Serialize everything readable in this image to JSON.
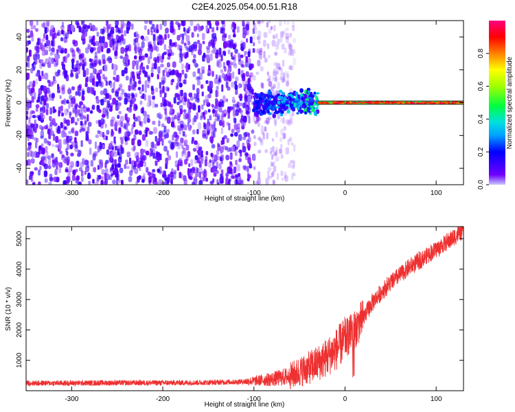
{
  "title": "C2E4.2025.054.00.51.R18",
  "colors": {
    "snr_line": "#ee3030",
    "spectrogram_base": "#7a1ee8",
    "colorbar": [
      "#b0b0ff",
      "#7000ff",
      "#0000ff",
      "#00a0ff",
      "#00e0e0",
      "#00ff40",
      "#a0ff00",
      "#ffff00",
      "#ff8000",
      "#ff0000",
      "#ff0080"
    ]
  },
  "chart_data": [
    {
      "type": "heatmap",
      "title": "C2E4.2025.054.00.51.R18",
      "xlabel": "Height of straight line (km)",
      "ylabel": "Frequency (Hz)",
      "xlim": [
        -350,
        130
      ],
      "ylim": [
        -50,
        50
      ],
      "xticks": [
        -300,
        -200,
        -100,
        0,
        100
      ],
      "yticks": [
        -40,
        -20,
        0,
        20,
        40
      ],
      "colorbar": {
        "label": "Normalized spectral amplitude",
        "range": [
          0,
          1
        ],
        "ticks": [
          "0.0",
          "0.2",
          "0.4",
          "0.6",
          "0.8"
        ]
      },
      "regions": [
        {
          "name": "noise",
          "x_range": [
            -350,
            -100
          ],
          "freq_range": [
            -50,
            50
          ],
          "amplitude": 0.1
        },
        {
          "name": "fading noise",
          "x_range": [
            -100,
            -55
          ],
          "freq_range": [
            -50,
            50
          ],
          "amplitude": 0.05
        },
        {
          "name": "emerging signal",
          "x_range": [
            -100,
            -30
          ],
          "freq_range": [
            -7,
            7
          ],
          "amplitude": 0.35
        },
        {
          "name": "carrier",
          "x_range": [
            -30,
            130
          ],
          "freq_range": [
            -1,
            1
          ],
          "amplitude": 0.95
        }
      ],
      "carrier_frequency": 0
    },
    {
      "type": "line",
      "xlabel": "Height of straight line (km)",
      "ylabel": "SNR (10 * v/v)",
      "xlim": [
        -350,
        130
      ],
      "ylim": [
        0,
        5400
      ],
      "xticks": [
        -300,
        -200,
        -100,
        0,
        100
      ],
      "yticks": [
        1000,
        2000,
        3000,
        4000,
        5000
      ],
      "x": [
        -350,
        -300,
        -250,
        -200,
        -150,
        -120,
        -100,
        -80,
        -60,
        -50,
        -40,
        -30,
        -20,
        -10,
        0,
        10,
        20,
        30,
        40,
        50,
        60,
        70,
        80,
        90,
        100,
        110,
        120,
        130
      ],
      "y": [
        250,
        250,
        260,
        260,
        270,
        290,
        320,
        380,
        480,
        620,
        750,
        900,
        1100,
        1350,
        1700,
        2000,
        2400,
        2900,
        3250,
        3550,
        3800,
        4050,
        4250,
        4450,
        4650,
        4850,
        5050,
        5300
      ]
    }
  ]
}
